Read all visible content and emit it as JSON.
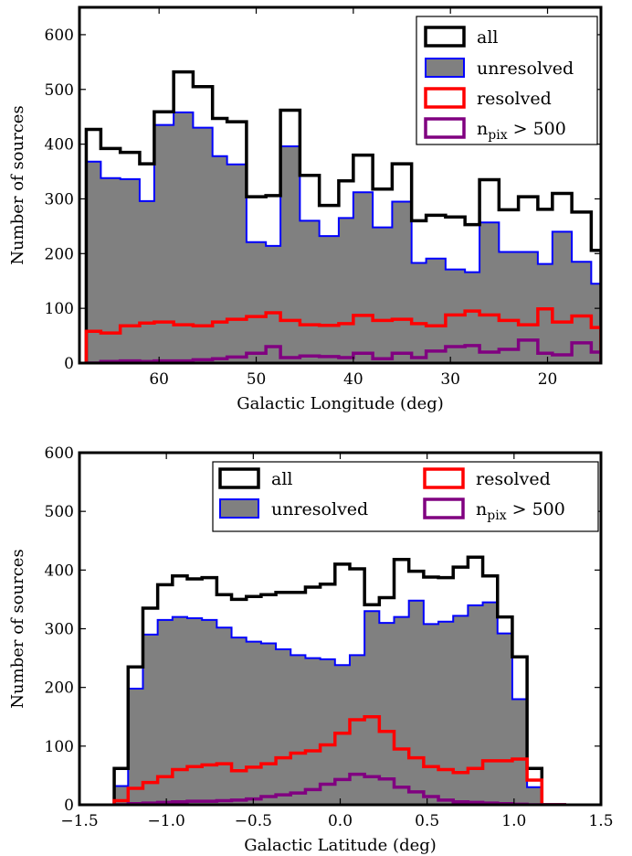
{
  "colors": {
    "all": "#000000",
    "unresolved_fill": "#808080",
    "unresolved_edge": "#0000ff",
    "resolved": "#ff0000",
    "npix": "#800080"
  },
  "chart_data": [
    {
      "type": "histogram",
      "xlabel": "Galactic Longitude (deg)",
      "ylabel": "Number of sources",
      "xlim": [
        68.2,
        14.5
      ],
      "ylim": [
        0,
        650
      ],
      "x_inverted": true,
      "x_ticks": [
        60,
        50,
        40,
        30,
        20
      ],
      "x_tick_labels": [
        "60",
        "50",
        "40",
        "30",
        "20"
      ],
      "y_ticks": [
        0,
        100,
        200,
        300,
        400,
        500,
        600
      ],
      "y_tick_labels": [
        "0",
        "100",
        "200",
        "300",
        "400",
        "500",
        "600"
      ],
      "bin_edges": [
        67.5,
        66.0,
        64.0,
        62.0,
        60.5,
        58.5,
        56.5,
        54.5,
        53.0,
        51.0,
        49.0,
        47.5,
        45.5,
        43.5,
        41.5,
        40.0,
        38.0,
        36.0,
        34.0,
        32.5,
        30.5,
        28.5,
        27.0,
        25.0,
        23.0,
        21.0,
        19.5,
        17.5,
        15.5,
        14.5
      ],
      "legend": {
        "position": "upper right",
        "columns": 1
      },
      "series": [
        {
          "name": "all",
          "style": "step",
          "values": [
            427,
            392,
            385,
            364,
            459,
            532,
            505,
            447,
            441,
            304,
            306,
            462,
            343,
            288,
            333,
            380,
            318,
            364,
            260,
            270,
            267,
            253,
            335,
            280,
            304,
            281,
            310,
            276,
            206
          ]
        },
        {
          "name": "unresolved",
          "style": "filled",
          "values": [
            368,
            338,
            336,
            296,
            435,
            458,
            430,
            378,
            363,
            221,
            214,
            396,
            260,
            232,
            265,
            312,
            248,
            295,
            183,
            191,
            171,
            166,
            257,
            203,
            203,
            181,
            240,
            185,
            145
          ]
        },
        {
          "name": "resolved",
          "style": "step",
          "values": [
            58,
            55,
            68,
            73,
            75,
            70,
            68,
            75,
            80,
            85,
            92,
            78,
            70,
            69,
            72,
            87,
            78,
            80,
            72,
            68,
            88,
            95,
            88,
            78,
            70,
            99,
            75,
            86,
            65
          ]
        },
        {
          "name": "n_pix > 500",
          "style": "step",
          "values": [
            0,
            3,
            4,
            3,
            4,
            4,
            6,
            8,
            11,
            18,
            30,
            10,
            13,
            12,
            10,
            18,
            8,
            18,
            10,
            22,
            30,
            32,
            20,
            25,
            42,
            18,
            15,
            37,
            20
          ]
        }
      ]
    },
    {
      "type": "histogram",
      "xlabel": "Galactic Latitude (deg)",
      "ylabel": "Number of sources",
      "xlim": [
        -1.5,
        1.5
      ],
      "ylim": [
        0,
        600
      ],
      "x_inverted": false,
      "x_ticks": [
        -1.5,
        -1.0,
        -0.5,
        0.0,
        0.5,
        1.0,
        1.5
      ],
      "x_tick_labels": [
        "−1.5",
        "−1.0",
        "−0.5",
        "0.0",
        "0.5",
        "1.0",
        "1.5"
      ],
      "y_ticks": [
        0,
        100,
        200,
        300,
        400,
        500,
        600
      ],
      "y_tick_labels": [
        "0",
        "100",
        "200",
        "300",
        "400",
        "500",
        "600"
      ],
      "bin_edges": [
        -1.3,
        -1.22,
        -1.135,
        -1.05,
        -0.965,
        -0.88,
        -0.795,
        -0.71,
        -0.625,
        -0.54,
        -0.455,
        -0.37,
        -0.285,
        -0.2,
        -0.115,
        -0.03,
        0.055,
        0.14,
        0.225,
        0.31,
        0.395,
        0.48,
        0.565,
        0.65,
        0.735,
        0.82,
        0.905,
        0.99,
        1.075,
        1.16,
        1.23,
        1.3
      ],
      "legend": {
        "position": "upper right",
        "columns": 2
      },
      "series": [
        {
          "name": "all",
          "style": "step",
          "values": [
            62,
            235,
            335,
            375,
            390,
            385,
            387,
            358,
            350,
            355,
            358,
            362,
            362,
            371,
            376,
            410,
            402,
            341,
            353,
            418,
            398,
            388,
            387,
            405,
            422,
            390,
            320,
            252,
            62,
            0,
            0
          ]
        },
        {
          "name": "unresolved",
          "style": "filled",
          "values": [
            32,
            198,
            290,
            315,
            320,
            318,
            315,
            302,
            285,
            278,
            275,
            265,
            255,
            250,
            248,
            238,
            255,
            330,
            310,
            320,
            348,
            308,
            312,
            322,
            340,
            345,
            292,
            180,
            30,
            0,
            0
          ]
        },
        {
          "name": "resolved",
          "style": "step",
          "values": [
            7,
            28,
            38,
            48,
            60,
            65,
            68,
            70,
            58,
            64,
            70,
            80,
            88,
            92,
            102,
            122,
            145,
            150,
            125,
            95,
            80,
            65,
            60,
            55,
            62,
            75,
            75,
            78,
            42,
            0,
            0
          ]
        },
        {
          "name": "n_pix > 500",
          "style": "step",
          "values": [
            0,
            2,
            3,
            4,
            5,
            6,
            6,
            7,
            8,
            10,
            14,
            17,
            20,
            26,
            35,
            43,
            52,
            48,
            44,
            30,
            22,
            14,
            8,
            5,
            4,
            3,
            2,
            1,
            0,
            0,
            0
          ]
        }
      ]
    }
  ]
}
